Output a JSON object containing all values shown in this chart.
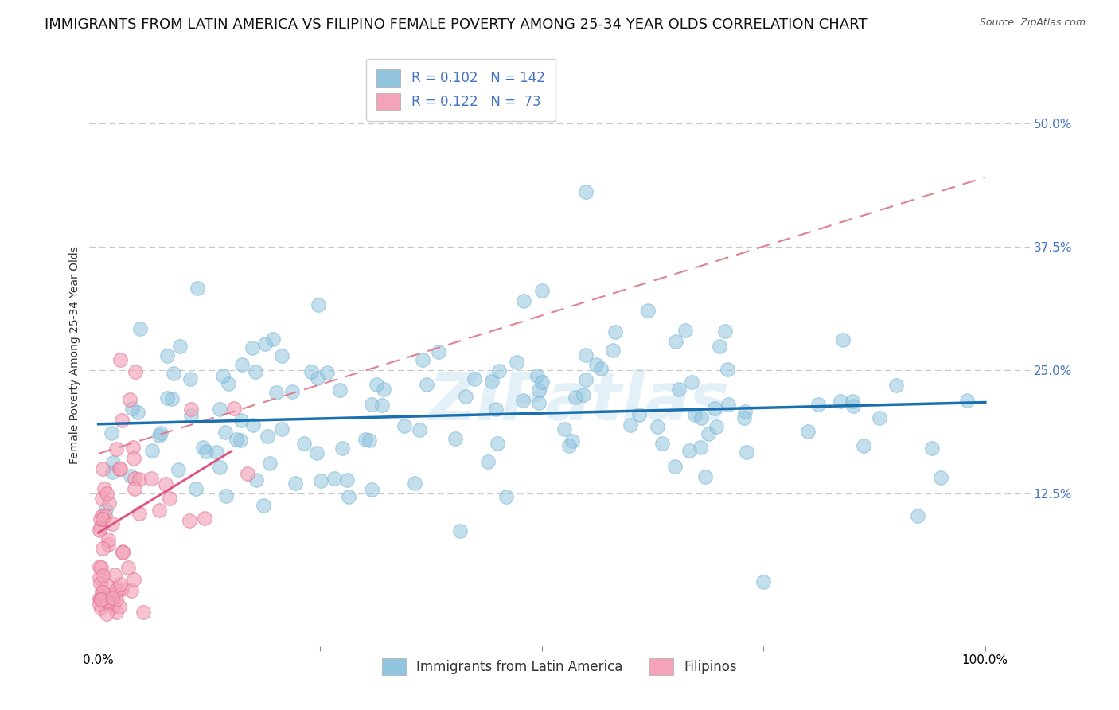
{
  "title": "IMMIGRANTS FROM LATIN AMERICA VS FILIPINO FEMALE POVERTY AMONG 25-34 YEAR OLDS CORRELATION CHART",
  "source": "Source: ZipAtlas.com",
  "ylabel": "Female Poverty Among 25-34 Year Olds",
  "xlim": [
    -1,
    105
  ],
  "ylim": [
    -3,
    56
  ],
  "xticks": [
    0,
    25,
    50,
    75,
    100
  ],
  "xticklabels": [
    "0.0%",
    "",
    "",
    "",
    "100.0%"
  ],
  "yticks": [
    12.5,
    25.0,
    37.5,
    50.0
  ],
  "yticklabels": [
    "12.5%",
    "25.0%",
    "37.5%",
    "50.0%"
  ],
  "legend_blue_label": "R = 0.102   N = 142",
  "legend_pink_label": "R = 0.122   N =  73",
  "blue_color": "#92c5de",
  "pink_color": "#f4a3b8",
  "blue_dot_edge": "#6baed6",
  "pink_dot_edge": "#e07090",
  "blue_line_color": "#1a6faf",
  "pink_line_color": "#e05080",
  "pink_dash_color": "#e08090",
  "watermark": "ZIPatlas",
  "series1_name": "Immigrants from Latin America",
  "series2_name": "Filipinos",
  "N1": 142,
  "N2": 73,
  "grid_color": "#c8c8c8",
  "background_color": "#ffffff",
  "title_fontsize": 13,
  "axis_label_fontsize": 10,
  "tick_fontsize": 11,
  "legend_fontsize": 12,
  "watermark_fontsize": 60,
  "watermark_color": "#c5dff0",
  "watermark_alpha": 0.45,
  "right_ytick_color": "#4472c4",
  "blue_line_intercept": 19.5,
  "blue_line_slope": 0.022,
  "pink_line_intercept": 8.5,
  "pink_line_slope": 0.55,
  "pink_dash_intercept": 16.5,
  "pink_dash_slope": 0.28
}
